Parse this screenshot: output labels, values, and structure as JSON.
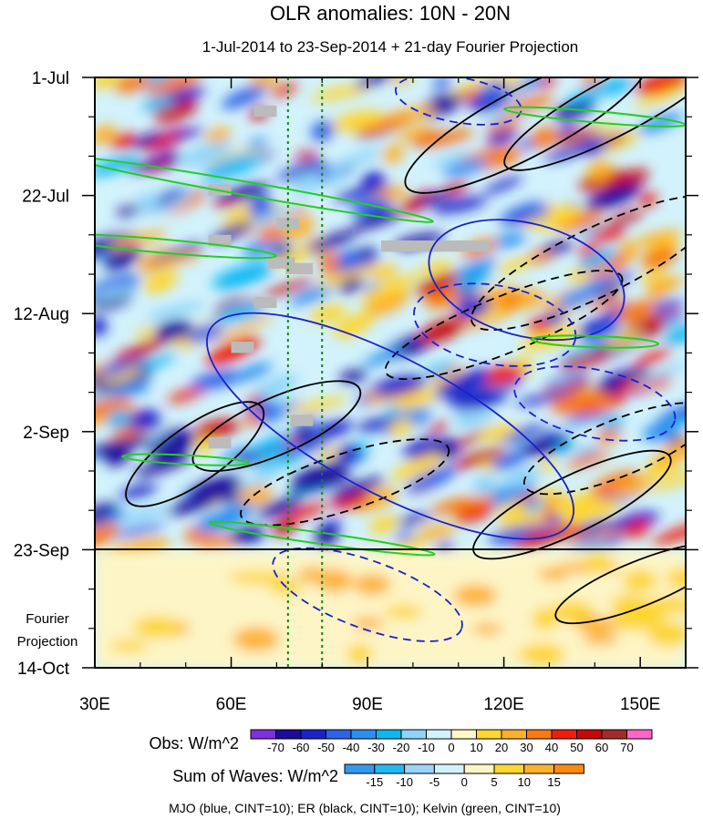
{
  "chart_data": {
    "type": "heatmap",
    "title": "OLR anomalies: 10N - 20N",
    "subtitle": "1-Jul-2014 to 23-Sep-2014 + 21-day Fourier Projection",
    "x_axis": {
      "range": [
        30,
        160
      ],
      "units": "longitude (degrees E)",
      "ticks": [
        {
          "value": 30,
          "label": "30E"
        },
        {
          "value": 60,
          "label": "60E"
        },
        {
          "value": 90,
          "label": "90E"
        },
        {
          "value": 120,
          "label": "120E"
        },
        {
          "value": 150,
          "label": "150E"
        }
      ],
      "minor_step": 10
    },
    "y_axis": {
      "range_days": [
        0,
        105
      ],
      "units": "days since 1-Jul-2014",
      "ticks": [
        {
          "value": 0,
          "label": "1-Jul"
        },
        {
          "value": 21,
          "label": "22-Jul"
        },
        {
          "value": 42,
          "label": "12-Aug"
        },
        {
          "value": 63,
          "label": "2-Sep"
        },
        {
          "value": 84,
          "label": "23-Sep"
        },
        {
          "value": 105,
          "label": "14-Oct"
        }
      ],
      "minor_step": 7
    },
    "observation_end_day": 84,
    "projection_label_line1": "Fourier",
    "projection_label_line2": "Projection",
    "reference_longitudes": [
      72.5,
      80
    ],
    "obs_colorbar": {
      "label": "Obs: W/m^2",
      "levels": [
        "-70",
        "-60",
        "-50",
        "-40",
        "-30",
        "-20",
        "-10",
        "0",
        "10",
        "20",
        "30",
        "40",
        "50",
        "60",
        "70"
      ],
      "colors": [
        "#7e2fe0",
        "#1c0c9c",
        "#1a22c8",
        "#2f62e6",
        "#2a90f0",
        "#0bb8f2",
        "#8ed4f8",
        "#d2f2fc",
        "#fef8c4",
        "#fdd630",
        "#fdb02c",
        "#f97a10",
        "#ee1e08",
        "#c80808",
        "#a52a2a",
        "#ff66c8"
      ]
    },
    "waves_colorbar": {
      "label": "Sum of Waves: W/m^2",
      "levels": [
        "-15",
        "-10",
        "-5",
        "0",
        "5",
        "10",
        "15"
      ],
      "colors": [
        "#3399ee",
        "#22b8f0",
        "#9bd4f6",
        "#d2f2fc",
        "#fdf5c6",
        "#fdd632",
        "#fdb22e",
        "#fd8a10"
      ]
    },
    "series": [
      {
        "name": "MJO",
        "color": "blue",
        "cint": 10
      },
      {
        "name": "ER",
        "color": "black",
        "cint": 10
      },
      {
        "name": "Kelvin",
        "color": "green",
        "cint": 10
      }
    ],
    "contour_caption": "MJO (blue, CINT=10); ER (black, CINT=10); Kelvin (green, CINT=10)",
    "missing_data_blocks": [
      {
        "lon": [
          65,
          70
        ],
        "day": [
          5,
          7
        ]
      },
      {
        "lon": [
          55,
          60
        ],
        "day": [
          19,
          21
        ]
      },
      {
        "lon": [
          70,
          75
        ],
        "day": [
          25,
          27
        ]
      },
      {
        "lon": [
          55,
          60
        ],
        "day": [
          28,
          30
        ]
      },
      {
        "lon": [
          93,
          117
        ],
        "day": [
          29,
          31
        ]
      },
      {
        "lon": [
          68,
          74
        ],
        "day": [
          32,
          34
        ]
      },
      {
        "lon": [
          72,
          78
        ],
        "day": [
          33,
          35
        ]
      },
      {
        "lon": [
          65,
          70
        ],
        "day": [
          39,
          41
        ]
      },
      {
        "lon": [
          60,
          65
        ],
        "day": [
          47,
          49
        ]
      },
      {
        "lon": [
          73,
          78
        ],
        "day": [
          60,
          62
        ]
      },
      {
        "lon": [
          55,
          60
        ],
        "day": [
          64,
          66
        ]
      }
    ]
  }
}
